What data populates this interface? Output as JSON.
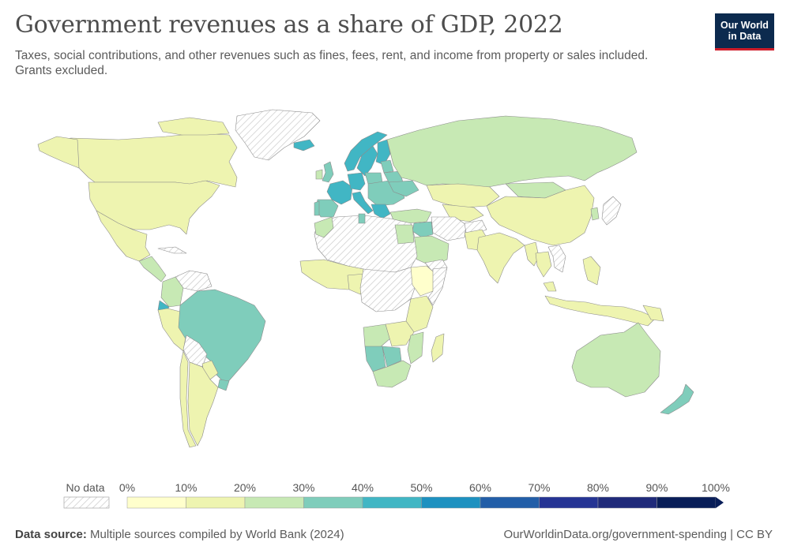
{
  "header": {
    "title": "Government revenues as a share of GDP, 2022",
    "subtitle": "Taxes, social contributions, and other revenues such as fines, fees, rent, and income from property or sales included. Grants excluded."
  },
  "logo": {
    "line1": "Our World",
    "line2": "in Data"
  },
  "legend": {
    "no_data_label": "No data",
    "ticks": [
      "0%",
      "10%",
      "20%",
      "30%",
      "40%",
      "50%",
      "60%",
      "70%",
      "80%",
      "90%",
      "100%"
    ],
    "colors": [
      "#ffffcc",
      "#eef4b0",
      "#c7e9b4",
      "#7fcdbb",
      "#41b6c4",
      "#1d91c0",
      "#225ea8",
      "#253494",
      "#1f2a7a",
      "#081d58"
    ]
  },
  "footer": {
    "source_label": "Data source:",
    "source_text": "Multiple sources compiled by World Bank (2024)",
    "link": "OurWorldinData.org/government-spending | CC BY"
  }
}
